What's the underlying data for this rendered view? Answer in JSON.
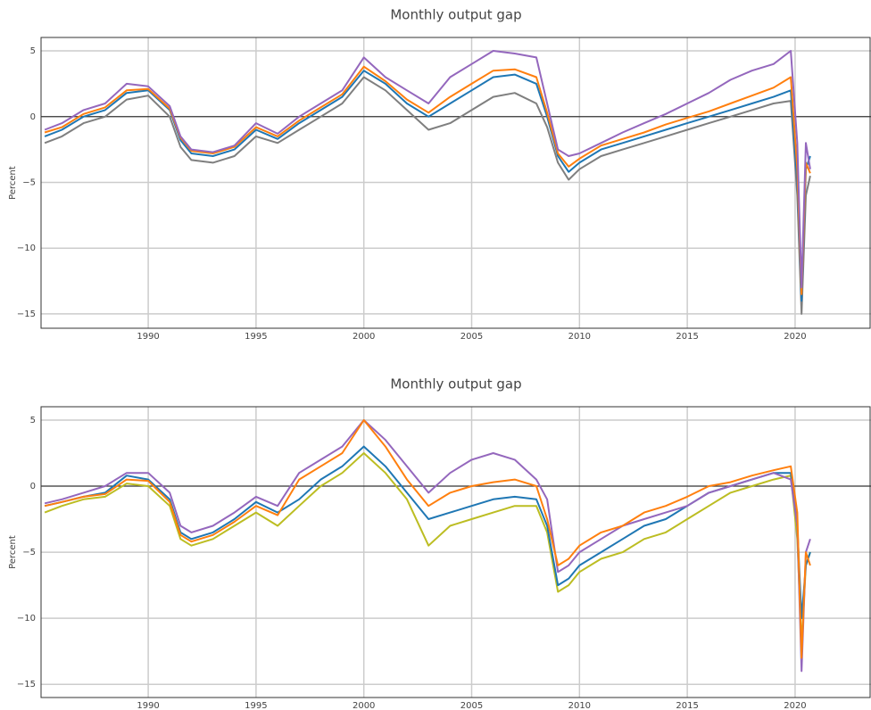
{
  "chart_data": [
    {
      "type": "line",
      "title": "Monthly output gap",
      "y_label": "Percent",
      "grid": true,
      "zeroline": true,
      "xlim": [
        1985.03,
        2023.52
      ],
      "ylim": [
        -16.09,
        6.02
      ],
      "xticks": [
        1990,
        1995,
        2000,
        2005,
        2010,
        2015,
        2020
      ],
      "yticks": [
        {
          "value": -15,
          "label": "−15"
        },
        {
          "value": -10,
          "label": "−10"
        },
        {
          "value": -5,
          "label": "−5"
        },
        0,
        5
      ],
      "x": [
        1985.2,
        1986,
        1987,
        1988,
        1989,
        1990,
        1991,
        1991.5,
        1992,
        1993,
        1994,
        1995,
        1996,
        1997,
        1998,
        1999,
        2000,
        2001,
        2002,
        2003,
        2004,
        2005,
        2006,
        2007,
        2008,
        2008.5,
        2009,
        2009.5,
        2010,
        2011,
        2012,
        2013,
        2014,
        2015,
        2016,
        2017,
        2018,
        2019,
        2019.8,
        2020.1,
        2020.3,
        2020.5,
        2020.7
      ],
      "series": [
        {
          "color": "#7f7f7f",
          "values": [
            -2,
            -1.5,
            -0.5,
            0,
            1.3,
            1.6,
            0,
            -2.3,
            -3.3,
            -3.5,
            -3,
            -1.5,
            -2,
            -1,
            0,
            1,
            3,
            2,
            0.5,
            -1,
            -0.5,
            0.5,
            1.5,
            1.8,
            1,
            -0.8,
            -3.5,
            -4.8,
            -4,
            -3,
            -2.5,
            -2,
            -1.5,
            -1,
            -0.5,
            0,
            0.5,
            1,
            1.2,
            -6,
            -15,
            -6,
            -4.5
          ]
        },
        {
          "color": "#1f77b4",
          "values": [
            -1.5,
            -1,
            0,
            0.5,
            1.8,
            2,
            0.5,
            -1.8,
            -2.8,
            -3,
            -2.5,
            -1,
            -1.7,
            -0.5,
            0.5,
            1.5,
            3.5,
            2.5,
            1,
            0,
            1,
            2,
            3,
            3.2,
            2.5,
            0,
            -3,
            -4.2,
            -3.5,
            -2.5,
            -2,
            -1.5,
            -1,
            -0.5,
            0,
            0.5,
            1,
            1.5,
            2,
            -5,
            -14,
            -4,
            -3
          ]
        },
        {
          "color": "#ff7f0e",
          "values": [
            -1.2,
            -0.8,
            0.2,
            0.7,
            2,
            2.1,
            0.6,
            -1.6,
            -2.6,
            -2.8,
            -2.3,
            -0.8,
            -1.5,
            -0.3,
            0.7,
            1.7,
            3.8,
            2.7,
            1.3,
            0.3,
            1.5,
            2.5,
            3.5,
            3.6,
            3,
            0.3,
            -2.8,
            -3.8,
            -3.2,
            -2.2,
            -1.7,
            -1.2,
            -0.6,
            -0.1,
            0.4,
            1,
            1.6,
            2.2,
            3,
            -4,
            -13.5,
            -3.5,
            -4.3
          ]
        },
        {
          "color": "#9467bd",
          "values": [
            -1,
            -0.5,
            0.5,
            1,
            2.5,
            2.3,
            0.8,
            -1.5,
            -2.5,
            -2.7,
            -2.2,
            -0.5,
            -1.3,
            0,
            1,
            2,
            4.5,
            3,
            2,
            1,
            3,
            4,
            5,
            4.8,
            4.5,
            1,
            -2.5,
            -3,
            -2.8,
            -2,
            -1.2,
            -0.5,
            0.2,
            1,
            1.8,
            2.8,
            3.5,
            4,
            5,
            -2,
            -13,
            -2,
            -4
          ]
        }
      ]
    },
    {
      "type": "line",
      "title": "Monthly output gap",
      "y_label": "Percent",
      "grid": true,
      "zeroline": true,
      "xlim": [
        1985.03,
        2023.52
      ],
      "ylim": [
        -16.0,
        6.01
      ],
      "xticks": [
        1990,
        1995,
        2000,
        2005,
        2010,
        2015,
        2020
      ],
      "yticks": [
        {
          "value": -15,
          "label": "−15"
        },
        {
          "value": -10,
          "label": "−10"
        },
        {
          "value": -5,
          "label": "−5"
        },
        0,
        5
      ],
      "x": [
        1985.2,
        1986,
        1987,
        1988,
        1989,
        1990,
        1991,
        1991.5,
        1992,
        1993,
        1994,
        1995,
        1996,
        1997,
        1998,
        1999,
        2000,
        2001,
        2002,
        2003,
        2004,
        2005,
        2006,
        2007,
        2008,
        2008.5,
        2009,
        2009.5,
        2010,
        2011,
        2012,
        2013,
        2014,
        2015,
        2016,
        2017,
        2018,
        2019,
        2019.8,
        2020.1,
        2020.3,
        2020.5,
        2020.7
      ],
      "series": [
        {
          "color": "#bcbd22",
          "values": [
            -2,
            -1.5,
            -1,
            -0.8,
            0.2,
            0,
            -1.5,
            -4,
            -4.5,
            -4,
            -3,
            -2,
            -3,
            -1.5,
            0,
            1,
            2.5,
            1,
            -1,
            -4.5,
            -3,
            -2.5,
            -2,
            -1.5,
            -1.5,
            -3.5,
            -8,
            -7.5,
            -6.5,
            -5.5,
            -5,
            -4,
            -3.5,
            -2.5,
            -1.5,
            -0.5,
            0,
            0.5,
            0.8,
            -4,
            -12,
            -6,
            -5
          ]
        },
        {
          "color": "#1f77b4",
          "values": [
            -1.5,
            -1.2,
            -0.8,
            -0.5,
            0.8,
            0.5,
            -1,
            -3.5,
            -4,
            -3.5,
            -2.5,
            -1.2,
            -2,
            -1,
            0.5,
            1.5,
            3,
            1.5,
            -0.5,
            -2.5,
            -2,
            -1.5,
            -1,
            -0.8,
            -1,
            -3,
            -7.5,
            -7,
            -6,
            -5,
            -4,
            -3,
            -2.5,
            -1.5,
            -0.5,
            0,
            0.5,
            1,
            1,
            -3,
            -10,
            -6,
            -5
          ]
        },
        {
          "color": "#9467bd",
          "values": [
            -1.3,
            -1,
            -0.5,
            0,
            1,
            1,
            -0.5,
            -3,
            -3.5,
            -3,
            -2,
            -0.8,
            -1.5,
            1,
            2,
            3,
            5,
            3.5,
            1.5,
            -0.5,
            1,
            2,
            2.5,
            2,
            0.5,
            -1,
            -6.5,
            -6,
            -5,
            -4,
            -3,
            -2.5,
            -2,
            -1.5,
            -0.5,
            0,
            0.5,
            1,
            0.5,
            -3,
            -14,
            -5,
            -4
          ]
        },
        {
          "color": "#ff7f0e",
          "values": [
            -1.5,
            -1.2,
            -0.8,
            -0.6,
            0.5,
            0.4,
            -1.2,
            -3.7,
            -4.2,
            -3.7,
            -2.7,
            -1.5,
            -2.2,
            0.5,
            1.5,
            2.5,
            5,
            3,
            0.5,
            -1.5,
            -0.5,
            0,
            0.3,
            0.5,
            0,
            -2.5,
            -6,
            -5.5,
            -4.5,
            -3.5,
            -3,
            -2,
            -1.5,
            -0.8,
            0,
            0.3,
            0.8,
            1.2,
            1.5,
            -2,
            -13,
            -5,
            -6
          ]
        }
      ]
    }
  ]
}
